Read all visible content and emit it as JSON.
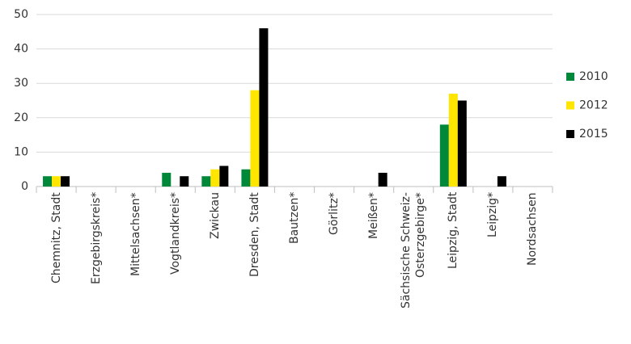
{
  "chart_data": {
    "type": "bar",
    "categories": [
      "Chemnitz, Stadt",
      "Erzgebirgskreis*",
      "Mittelsachsen*",
      "Vogtlandkreis*",
      "Zwickau",
      "Dresden, Stadt",
      "Bautzen*",
      "Görlitz*",
      "Meißen*",
      "Sächsische Schweiz-Osterzgebirge*",
      "Leipzig, Stadt",
      "Leipzig*",
      "Nordsachsen"
    ],
    "series": [
      {
        "name": "2010",
        "color": "#00883a",
        "values": [
          3,
          0,
          0,
          4,
          3,
          5,
          0,
          0,
          0,
          0,
          18,
          0,
          0
        ]
      },
      {
        "name": "2012",
        "color": "#ffe600",
        "values": [
          3,
          0,
          0,
          0,
          5,
          28,
          0,
          0,
          0,
          0,
          27,
          0,
          0
        ]
      },
      {
        "name": "2015",
        "color": "#000000",
        "values": [
          3,
          0,
          0,
          3,
          6,
          46,
          0,
          0,
          4,
          0,
          25,
          3,
          0
        ]
      }
    ],
    "ylim": [
      0,
      50
    ],
    "yticks": [
      0,
      10,
      20,
      30,
      40,
      50
    ],
    "grid": true,
    "legend": "right"
  }
}
